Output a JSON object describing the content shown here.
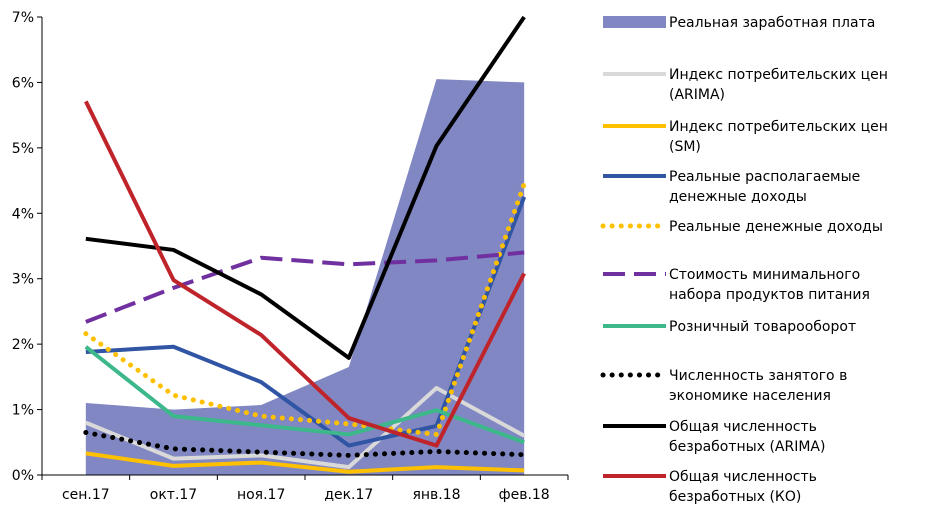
{
  "chart_data": {
    "type": "line",
    "categories": [
      "сен.17",
      "окт.17",
      "ноя.17",
      "дек.17",
      "янв.18",
      "фев.18"
    ],
    "ylim": [
      0,
      7
    ],
    "y_ticks": [
      "0%",
      "1%",
      "2%",
      "3%",
      "4%",
      "5%",
      "6%",
      "7%"
    ],
    "grid": false,
    "legend_position": "right",
    "series": [
      {
        "name": "Реальная заработная плата",
        "kind": "area",
        "color": "#8087c2",
        "values": [
          1.1,
          1.0,
          1.07,
          1.65,
          6.05,
          6.0
        ],
        "legend_lines": [
          "Реальная заработная плата"
        ]
      },
      {
        "name": "Индекс потребительских цен (ARIMA)",
        "kind": "line",
        "color": "#d9d9d9",
        "dash": "solid",
        "values": [
          0.8,
          0.25,
          0.3,
          0.12,
          1.33,
          0.6
        ],
        "legend_lines": [
          "Индекс потребительских цен",
          "(ARIMA)"
        ]
      },
      {
        "name": "Индекс потребительских цен (SM)",
        "kind": "line",
        "color": "#ffc000",
        "dash": "solid",
        "values": [
          0.33,
          0.14,
          0.19,
          0.05,
          0.12,
          0.07
        ],
        "legend_lines": [
          "Индекс потребительских цен",
          "(SM)"
        ]
      },
      {
        "name": "Реальные располагаемые денежные доходы",
        "kind": "line",
        "color": "#2f55a4",
        "dash": "solid",
        "values": [
          1.88,
          1.96,
          1.42,
          0.45,
          0.75,
          4.25
        ],
        "legend_lines": [
          "Реальные располагаемые",
          "денежные доходы"
        ]
      },
      {
        "name": "Реальные денежные доходы",
        "kind": "line",
        "color": "#ffc000",
        "dash": "dots",
        "values": [
          2.16,
          1.22,
          0.9,
          0.78,
          0.62,
          4.45
        ],
        "legend_lines": [
          "Реальные денежные доходы"
        ]
      },
      {
        "name": "Стоимость минимального набора продуктов питания",
        "kind": "line",
        "color": "#7030a0",
        "dash": "dash",
        "values": [
          2.34,
          2.86,
          3.32,
          3.22,
          3.28,
          3.4
        ],
        "legend_lines": [
          "Стоимость минимального",
          "набора продуктов питания"
        ]
      },
      {
        "name": "Розничный товарооборот",
        "kind": "line",
        "color": "#3cb88a",
        "dash": "solid",
        "values": [
          1.96,
          0.9,
          0.76,
          0.62,
          0.99,
          0.5
        ],
        "legend_lines": [
          "Розничный товарооборот"
        ]
      },
      {
        "name": "Численность занятого в экономике населения",
        "kind": "line",
        "color": "#000000",
        "dash": "dots",
        "values": [
          0.65,
          0.4,
          0.35,
          0.3,
          0.36,
          0.31
        ],
        "legend_lines": [
          "Численность занятого в",
          "экономике населения"
        ]
      },
      {
        "name": "Общая численность безработных (ARIMA)",
        "kind": "line",
        "color": "#000000",
        "dash": "solid",
        "values": [
          3.61,
          3.44,
          2.76,
          1.79,
          5.03,
          7.0
        ],
        "legend_lines": [
          "Общая численность",
          "безработных (ARIMA)"
        ]
      },
      {
        "name": "Общая численность безработных (КО)",
        "kind": "line",
        "color": "#c0242b",
        "dash": "solid",
        "values": [
          5.71,
          2.98,
          2.14,
          0.87,
          0.45,
          3.08
        ],
        "legend_lines": [
          "Общая численность",
          "безработных (КО)"
        ]
      }
    ]
  }
}
